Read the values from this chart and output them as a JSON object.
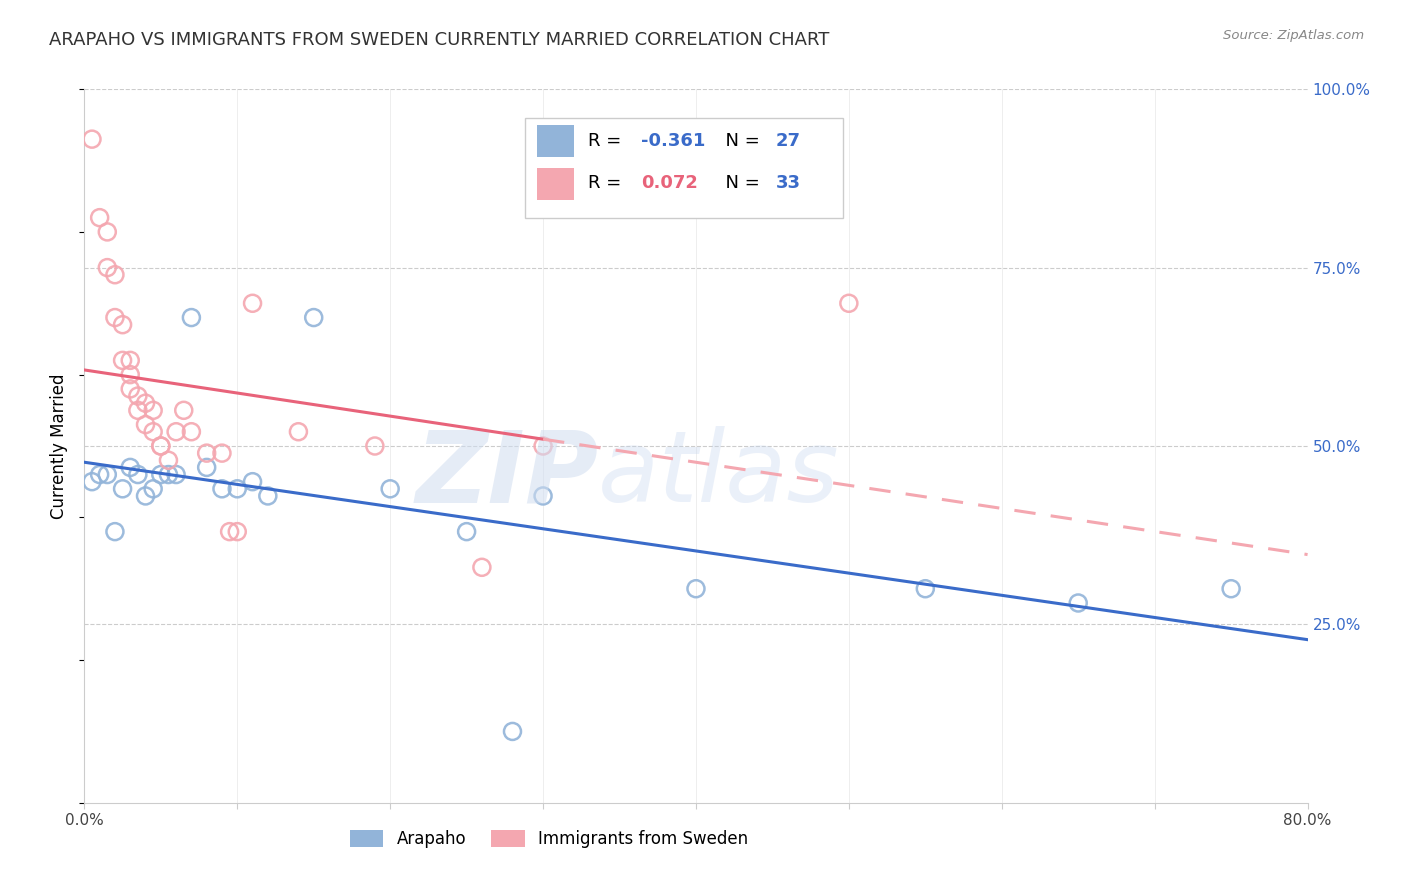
{
  "title": "ARAPAHO VS IMMIGRANTS FROM SWEDEN CURRENTLY MARRIED CORRELATION CHART",
  "source": "Source: ZipAtlas.com",
  "ylabel": "Currently Married",
  "xmin": 0.0,
  "xmax": 80.0,
  "ymin": 0.0,
  "ymax": 100.0,
  "blue_label": "Arapaho",
  "pink_label": "Immigrants from Sweden",
  "blue_R": -0.361,
  "blue_N": 27,
  "pink_R": 0.072,
  "pink_N": 33,
  "blue_color": "#92B4D9",
  "pink_color": "#F4A7B0",
  "blue_line_color": "#3A6BC9",
  "pink_line_color": "#E8637A",
  "pink_dashed_color": "#F4A7B0",
  "blue_points_x": [
    0.5,
    1.0,
    1.5,
    2.0,
    2.5,
    3.0,
    3.5,
    4.0,
    4.5,
    5.0,
    5.5,
    6.0,
    7.0,
    8.0,
    9.0,
    10.0,
    11.0,
    12.0,
    15.0,
    20.0,
    25.0,
    28.0,
    30.0,
    40.0,
    55.0,
    65.0,
    75.0
  ],
  "blue_points_y": [
    45.0,
    46.0,
    46.0,
    38.0,
    44.0,
    47.0,
    46.0,
    43.0,
    44.0,
    46.0,
    46.0,
    46.0,
    68.0,
    47.0,
    44.0,
    44.0,
    45.0,
    43.0,
    68.0,
    44.0,
    38.0,
    10.0,
    43.0,
    30.0,
    30.0,
    28.0,
    30.0
  ],
  "pink_points_x": [
    0.5,
    1.0,
    1.5,
    1.5,
    2.0,
    2.0,
    2.5,
    2.5,
    3.0,
    3.0,
    3.0,
    3.5,
    3.5,
    4.0,
    4.0,
    4.5,
    4.5,
    5.0,
    5.0,
    5.5,
    6.0,
    6.5,
    7.0,
    8.0,
    9.0,
    9.5,
    10.0,
    11.0,
    14.0,
    19.0,
    26.0,
    30.0,
    50.0
  ],
  "pink_points_y": [
    93.0,
    82.0,
    80.0,
    75.0,
    74.0,
    68.0,
    67.0,
    62.0,
    62.0,
    60.0,
    58.0,
    57.0,
    55.0,
    56.0,
    53.0,
    55.0,
    52.0,
    50.0,
    50.0,
    48.0,
    52.0,
    55.0,
    52.0,
    49.0,
    49.0,
    38.0,
    38.0,
    70.0,
    52.0,
    50.0,
    33.0,
    50.0,
    70.0
  ],
  "pink_solid_end_x": 30.0,
  "legend_R_blue_color": "#3A6BC9",
  "legend_N_blue_color": "#3A6BC9",
  "legend_R_pink_color": "#E8637A",
  "legend_N_pink_color": "#3A6BC9"
}
